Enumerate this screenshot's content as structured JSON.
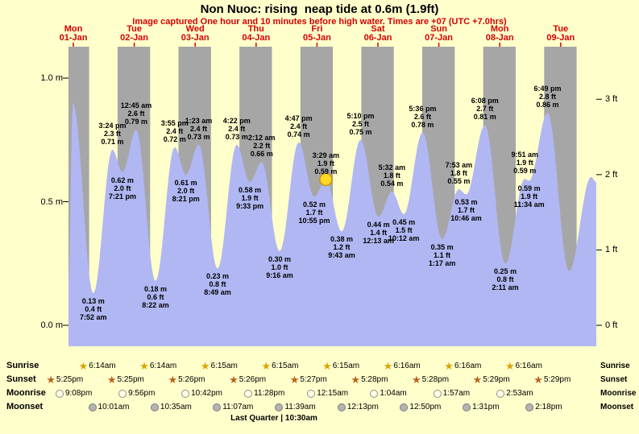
{
  "title": "Non Nuoc: rising  neap tide at 0.6m (1.9ft)",
  "subtitle": "Image captured One hour and 10 minutes before high water. Times are +07 (UTC +7.0hrs)",
  "colors": {
    "background": "#ffffcc",
    "night_band": "#a6a6a6",
    "day_band": "#ffffcc",
    "tide_fill": "#b0b7f2",
    "accent_red": "#d40000",
    "marker_fill": "#ffd92a",
    "marker_stroke": "#c79a00",
    "sunrise_star": "#d9a404",
    "sunset_star": "#b8641b",
    "moonrise_fill": "#ffffe6",
    "moonrise_stroke": "#8f8f8f",
    "moonset_fill": "#b3b3b3",
    "moonset_stroke": "#7d7d7d"
  },
  "chart_data": {
    "type": "area",
    "title": "Non Nuoc tide height over time",
    "x_unit": "hours from 01-Jan 00:00 (+07)",
    "ylim_m": [
      -0.09,
      1.13
    ],
    "days": [
      {
        "name": "Mon",
        "date": "01-Jan",
        "t": 0
      },
      {
        "name": "Tue",
        "date": "02-Jan",
        "t": 24
      },
      {
        "name": "Wed",
        "date": "03-Jan",
        "t": 48
      },
      {
        "name": "Thu",
        "date": "04-Jan",
        "t": 72
      },
      {
        "name": "Fri",
        "date": "05-Jan",
        "t": 96
      },
      {
        "name": "Sat",
        "date": "06-Jan",
        "t": 120
      },
      {
        "name": "Sun",
        "date": "07-Jan",
        "t": 144
      },
      {
        "name": "Mon",
        "date": "08-Jan",
        "t": 168
      },
      {
        "name": "Tue",
        "date": "09-Jan",
        "t": 192
      }
    ],
    "y_axis_left": {
      "unit": "m",
      "ticks": [
        {
          "label": "0.0 m",
          "value": 0
        },
        {
          "label": "0.5 m",
          "value": 0.5
        },
        {
          "label": "1.0 m",
          "value": 1.0
        }
      ]
    },
    "y_axis_right": {
      "unit": "ft",
      "ticks": [
        {
          "label": "0 ft",
          "value": 0
        },
        {
          "label": "1 ft",
          "value": 1
        },
        {
          "label": "2 ft",
          "value": 2
        },
        {
          "label": "3 ft",
          "value": 3
        }
      ]
    },
    "tides": [
      {
        "kind": "edge",
        "t": -1.9,
        "h": 0.18
      },
      {
        "kind": "H",
        "t": -0.2,
        "h": 0.9
      },
      {
        "kind": "L",
        "t": 7.867,
        "h": 0.13,
        "m": "0.13 m",
        "ft": "0.4 ft",
        "time": "7:52 am"
      },
      {
        "kind": "H",
        "t": 15.4,
        "h": 0.71,
        "time": "3:24 pm",
        "ft": "2.3 ft",
        "m": "0.71 m"
      },
      {
        "kind": "L",
        "t": 19.35,
        "h": 0.62,
        "m": "0.62 m",
        "ft": "2.0 ft",
        "time": "7:21 pm"
      },
      {
        "kind": "H",
        "t": 24.75,
        "h": 0.79,
        "time": "12:45 am",
        "ft": "2.6 ft",
        "m": "0.79 m"
      },
      {
        "kind": "L",
        "t": 32.367,
        "h": 0.18,
        "m": "0.18 m",
        "ft": "0.6 ft",
        "time": "8:22 am"
      },
      {
        "kind": "H",
        "t": 39.917,
        "h": 0.72,
        "time": "3:55 pm",
        "ft": "2.4 ft",
        "m": "0.72 m"
      },
      {
        "kind": "L",
        "t": 44.35,
        "h": 0.61,
        "m": "0.61 m",
        "ft": "2.0 ft",
        "time": "8:21 pm"
      },
      {
        "kind": "H",
        "t": 49.383,
        "h": 0.73,
        "time": "1:23 am",
        "ft": "2.4 ft",
        "m": "0.73 m"
      },
      {
        "kind": "L",
        "t": 56.817,
        "h": 0.23,
        "m": "0.23 m",
        "ft": "0.8 ft",
        "time": "8:49 am"
      },
      {
        "kind": "H",
        "t": 64.367,
        "h": 0.73,
        "time": "4:22 pm",
        "ft": "2.4 ft",
        "m": "0.73 m"
      },
      {
        "kind": "L",
        "t": 69.55,
        "h": 0.58,
        "m": "0.58 m",
        "ft": "1.9 ft",
        "time": "9:33 pm"
      },
      {
        "kind": "H",
        "t": 74.2,
        "h": 0.66,
        "time": "2:12 am",
        "ft": "2.2 ft",
        "m": "0.66 m"
      },
      {
        "kind": "L",
        "t": 81.267,
        "h": 0.3,
        "m": "0.30 m",
        "ft": "1.0 ft",
        "time": "9:16 am"
      },
      {
        "kind": "H",
        "t": 88.783,
        "h": 0.74,
        "time": "4:47 pm",
        "ft": "2.4 ft",
        "m": "0.74 m"
      },
      {
        "kind": "L",
        "t": 94.917,
        "h": 0.52,
        "m": "0.52 m",
        "ft": "1.7 ft",
        "time": "10:55 pm"
      },
      {
        "kind": "H",
        "t": 99.483,
        "h": 0.59,
        "time": "3:29 am",
        "ft": "1.9 ft",
        "m": "0.59 m",
        "marker": true
      },
      {
        "kind": "L",
        "t": 105.717,
        "h": 0.38,
        "m": "0.38 m",
        "ft": "1.2 ft",
        "time": "9:43 am"
      },
      {
        "kind": "H",
        "t": 113.167,
        "h": 0.75,
        "time": "5:10 pm",
        "ft": "2.5 ft",
        "m": "0.75 m"
      },
      {
        "kind": "L",
        "t": 120.217,
        "h": 0.44,
        "m": "0.44 m",
        "ft": "1.4 ft",
        "time": "12:13 am"
      },
      {
        "kind": "H",
        "t": 125.533,
        "h": 0.54,
        "time": "5:32 am",
        "ft": "1.8 ft",
        "m": "0.54 m"
      },
      {
        "kind": "L",
        "t": 130.2,
        "h": 0.45,
        "m": "0.45 m",
        "ft": "1.5 ft",
        "time": "10:12 am"
      },
      {
        "kind": "H",
        "t": 137.6,
        "h": 0.78,
        "time": "5:36 pm",
        "ft": "2.6 ft",
        "m": "0.78 m"
      },
      {
        "kind": "L",
        "t": 145.283,
        "h": 0.35,
        "m": "0.35 m",
        "ft": "1.1 ft",
        "time": "1:17 am"
      },
      {
        "kind": "H",
        "t": 151.883,
        "h": 0.55,
        "time": "7:53 am",
        "ft": "1.8 ft",
        "m": "0.55 m"
      },
      {
        "kind": "L",
        "t": 154.767,
        "h": 0.53,
        "m": "0.53 m",
        "ft": "1.7 ft",
        "time": "10:46 am"
      },
      {
        "kind": "H",
        "t": 162.133,
        "h": 0.81,
        "time": "6:08 pm",
        "ft": "2.7 ft",
        "m": "0.81 m"
      },
      {
        "kind": "L",
        "t": 170.183,
        "h": 0.25,
        "m": "0.25 m",
        "ft": "0.8 ft",
        "time": "2:11 am"
      },
      {
        "kind": "H",
        "t": 177.85,
        "h": 0.592,
        "time": "9:51 am",
        "ft": "1.9 ft",
        "m": "0.59 m"
      },
      {
        "kind": "L",
        "t": 179.567,
        "h": 0.585,
        "m": "0.59 m",
        "ft": "1.9 ft",
        "time": "11:34 am"
      },
      {
        "kind": "H",
        "t": 186.817,
        "h": 0.86,
        "time": "6:49 pm",
        "ft": "2.8 ft",
        "m": "0.86 m"
      },
      {
        "kind": "L",
        "t": 195.3,
        "h": 0.22
      },
      {
        "kind": "H",
        "t": 204.0,
        "h": 0.6
      },
      {
        "kind": "edge",
        "t": 206.0,
        "h": 0.58
      }
    ],
    "marker": {
      "t": 99.483,
      "h": 0.59
    }
  },
  "astro": {
    "rows": [
      {
        "label": "Sunrise",
        "icon": "star",
        "color": "#d9a404",
        "events": [
          {
            "t": 6.233,
            "label": "6:14am"
          },
          {
            "t": 30.233,
            "label": "6:14am"
          },
          {
            "t": 54.25,
            "label": "6:15am"
          },
          {
            "t": 78.25,
            "label": "6:15am"
          },
          {
            "t": 102.25,
            "label": "6:15am"
          },
          {
            "t": 126.267,
            "label": "6:16am"
          },
          {
            "t": 150.267,
            "label": "6:16am"
          },
          {
            "t": 174.267,
            "label": "6:16am"
          }
        ]
      },
      {
        "label": "Sunset",
        "icon": "star",
        "color": "#b8641b",
        "events": [
          {
            "t": -6.583,
            "label": "5:25pm"
          },
          {
            "t": 17.417,
            "label": "5:25pm"
          },
          {
            "t": 41.433,
            "label": "5:26pm"
          },
          {
            "t": 65.433,
            "label": "5:26pm"
          },
          {
            "t": 89.45,
            "label": "5:27pm"
          },
          {
            "t": 113.467,
            "label": "5:28pm"
          },
          {
            "t": 137.467,
            "label": "5:28pm"
          },
          {
            "t": 161.483,
            "label": "5:29pm"
          },
          {
            "t": 185.483,
            "label": "5:29pm"
          }
        ]
      },
      {
        "label": "Moonrise",
        "icon": "circle-light",
        "color": "#ffffe6",
        "events": [
          {
            "t": -2.867,
            "label": "9:08pm"
          },
          {
            "t": 21.933,
            "label": "9:56pm"
          },
          {
            "t": 46.7,
            "label": "10:42pm"
          },
          {
            "t": 71.467,
            "label": "11:28pm"
          },
          {
            "t": 96.25,
            "label": "12:15am"
          },
          {
            "t": 121.067,
            "label": "1:04am"
          },
          {
            "t": 145.95,
            "label": "1:57am"
          },
          {
            "t": 170.883,
            "label": "2:53am"
          }
        ]
      },
      {
        "label": "Moonset",
        "icon": "circle-gray",
        "color": "#b3b3b3",
        "events": [
          {
            "t": 10.017,
            "label": "10:01am"
          },
          {
            "t": 34.583,
            "label": "10:35am"
          },
          {
            "t": 59.117,
            "label": "11:07am"
          },
          {
            "t": 83.65,
            "label": "11:39am"
          },
          {
            "t": 108.217,
            "label": "12:13pm"
          },
          {
            "t": 132.833,
            "label": "12:50pm"
          },
          {
            "t": 157.517,
            "label": "1:31pm"
          },
          {
            "t": 182.3,
            "label": "2:18pm"
          }
        ]
      }
    ],
    "footnote": "Last Quarter | 10:30am"
  }
}
